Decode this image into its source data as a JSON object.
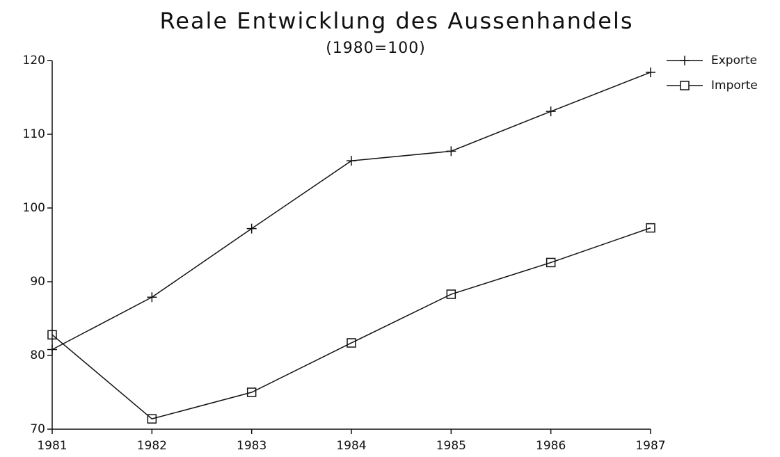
{
  "chart_data": {
    "type": "line",
    "title": "Reale Entwicklung des Aussenhandels",
    "subtitle": "(1980=100)",
    "x": [
      1981,
      1982,
      1983,
      1984,
      1985,
      1986,
      1987
    ],
    "xlim": [
      1981,
      1987
    ],
    "xticks": [
      1981,
      1982,
      1983,
      1984,
      1985,
      1986,
      1987
    ],
    "ylim": [
      70,
      120
    ],
    "yticks": [
      70,
      80,
      90,
      100,
      110,
      120
    ],
    "legend": "top-right",
    "series": [
      {
        "name": "Exporte",
        "color": "#111111",
        "marker": "plus",
        "values": [
          80.8,
          87.9,
          97.2,
          106.4,
          107.7,
          113.1,
          118.4
        ]
      },
      {
        "name": "Importe",
        "color": "#111111",
        "marker": "square",
        "values": [
          82.8,
          71.4,
          75.0,
          81.7,
          88.3,
          92.6,
          97.3
        ]
      }
    ]
  }
}
